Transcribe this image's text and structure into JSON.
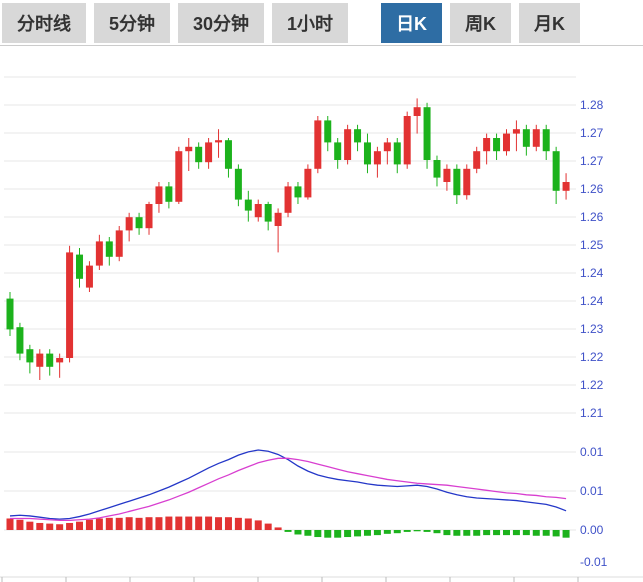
{
  "tabs": {
    "items": [
      {
        "label": "分时线",
        "active": false
      },
      {
        "label": "5分钟",
        "active": false
      },
      {
        "label": "30分钟",
        "active": false
      },
      {
        "label": "1小时",
        "active": false
      },
      {
        "label": "日K",
        "active": true
      },
      {
        "label": "周K",
        "active": false
      },
      {
        "label": "月K",
        "active": false
      }
    ],
    "active_bg": "#2e6da4",
    "inactive_bg": "#d8d8d8"
  },
  "chart_data": {
    "type": "candlestick",
    "title": "",
    "description": "Daily candlestick price chart with MACD indicator pane below; red = up, green = down (Chinese convention)",
    "ohlc_format": "[open, high, low, close]",
    "price_axis_labels": [
      "1.28",
      "1.27",
      "1.27",
      "1.26",
      "1.26",
      "1.25",
      "1.24",
      "1.24",
      "1.23",
      "1.22",
      "1.22",
      "1.21"
    ],
    "macd_axis_labels": [
      "0.01",
      "0.01",
      "0.00",
      "-0.01"
    ],
    "price_axis_range": [
      1.21,
      1.28
    ],
    "macd_axis_range": [
      -0.005,
      0.0125
    ],
    "grid": true,
    "legend": "none",
    "candles": [
      [
        1.236,
        1.2375,
        1.2275,
        1.229
      ],
      [
        1.2295,
        1.2305,
        1.222,
        1.2235
      ],
      [
        1.2245,
        1.2255,
        1.219,
        1.2215
      ],
      [
        1.2205,
        1.2245,
        1.2175,
        1.2235
      ],
      [
        1.2235,
        1.2245,
        1.2185,
        1.2205
      ],
      [
        1.2215,
        1.2235,
        1.218,
        1.2225
      ],
      [
        1.2225,
        1.248,
        1.2215,
        1.2465
      ],
      [
        1.246,
        1.2475,
        1.2385,
        1.2405
      ],
      [
        1.2385,
        1.2445,
        1.2375,
        1.2435
      ],
      [
        1.2435,
        1.2505,
        1.2425,
        1.249
      ],
      [
        1.249,
        1.25,
        1.2435,
        1.2455
      ],
      [
        1.2455,
        1.2525,
        1.2445,
        1.2515
      ],
      [
        1.2515,
        1.2555,
        1.249,
        1.2545
      ],
      [
        1.2545,
        1.2555,
        1.2505,
        1.252
      ],
      [
        1.252,
        1.258,
        1.2505,
        1.2575
      ],
      [
        1.2575,
        1.2625,
        1.2555,
        1.2615
      ],
      [
        1.2615,
        1.2625,
        1.2565,
        1.258
      ],
      [
        1.258,
        1.2705,
        1.2575,
        1.2695
      ],
      [
        1.2695,
        1.2725,
        1.265,
        1.2705
      ],
      [
        1.2705,
        1.2715,
        1.2655,
        1.267
      ],
      [
        1.267,
        1.2725,
        1.2655,
        1.2715
      ],
      [
        1.2715,
        1.2745,
        1.268,
        1.272
      ],
      [
        1.272,
        1.2725,
        1.2635,
        1.2655
      ],
      [
        1.2655,
        1.2665,
        1.257,
        1.2585
      ],
      [
        1.2585,
        1.2605,
        1.2535,
        1.256
      ],
      [
        1.2545,
        1.2585,
        1.2535,
        1.2575
      ],
      [
        1.2575,
        1.258,
        1.2515,
        1.2535
      ],
      [
        1.2525,
        1.2565,
        1.2465,
        1.2555
      ],
      [
        1.2555,
        1.2625,
        1.2545,
        1.2615
      ],
      [
        1.2615,
        1.2625,
        1.2575,
        1.259
      ],
      [
        1.259,
        1.2665,
        1.2585,
        1.2655
      ],
      [
        1.2655,
        1.2775,
        1.2645,
        1.2765
      ],
      [
        1.2765,
        1.2775,
        1.2695,
        1.2715
      ],
      [
        1.2715,
        1.2725,
        1.2655,
        1.2675
      ],
      [
        1.2675,
        1.2755,
        1.2665,
        1.2745
      ],
      [
        1.2745,
        1.2755,
        1.2695,
        1.2715
      ],
      [
        1.2715,
        1.2735,
        1.2645,
        1.2665
      ],
      [
        1.2665,
        1.2705,
        1.2635,
        1.2695
      ],
      [
        1.2695,
        1.2725,
        1.2665,
        1.2715
      ],
      [
        1.2715,
        1.2725,
        1.2645,
        1.2665
      ],
      [
        1.2665,
        1.2785,
        1.2655,
        1.2775
      ],
      [
        1.2775,
        1.2815,
        1.2735,
        1.2795
      ],
      [
        1.2795,
        1.2805,
        1.2655,
        1.2675
      ],
      [
        1.2675,
        1.2685,
        1.2615,
        1.2635
      ],
      [
        1.2625,
        1.2665,
        1.2605,
        1.2655
      ],
      [
        1.2655,
        1.2665,
        1.2575,
        1.2595
      ],
      [
        1.2595,
        1.2665,
        1.2585,
        1.2655
      ],
      [
        1.2655,
        1.2705,
        1.2645,
        1.2695
      ],
      [
        1.2695,
        1.2735,
        1.2665,
        1.2725
      ],
      [
        1.2725,
        1.2735,
        1.2675,
        1.2695
      ],
      [
        1.2695,
        1.2745,
        1.2685,
        1.2735
      ],
      [
        1.2735,
        1.2765,
        1.2695,
        1.2745
      ],
      [
        1.2745,
        1.2755,
        1.2685,
        1.2705
      ],
      [
        1.2705,
        1.2755,
        1.2695,
        1.2745
      ],
      [
        1.2745,
        1.2755,
        1.2675,
        1.2695
      ],
      [
        1.2695,
        1.2705,
        1.2575,
        1.2605
      ],
      [
        1.2605,
        1.2645,
        1.2585,
        1.2625
      ]
    ],
    "macd": {
      "dif": [
        0.0022,
        0.0023,
        0.0022,
        0.002,
        0.0018,
        0.0017,
        0.0018,
        0.0021,
        0.0025,
        0.003,
        0.0035,
        0.004,
        0.0045,
        0.005,
        0.0055,
        0.0061,
        0.0067,
        0.0074,
        0.0081,
        0.0089,
        0.0097,
        0.0104,
        0.011,
        0.0117,
        0.0122,
        0.0125,
        0.0123,
        0.0118,
        0.011,
        0.01,
        0.0092,
        0.0086,
        0.0082,
        0.0079,
        0.0077,
        0.0075,
        0.0072,
        0.007,
        0.0069,
        0.0068,
        0.0069,
        0.007,
        0.0068,
        0.0064,
        0.0059,
        0.0055,
        0.0052,
        0.005,
        0.0049,
        0.0048,
        0.0047,
        0.0046,
        0.0044,
        0.0042,
        0.004,
        0.0036,
        0.003
      ],
      "dea": [
        0.0018,
        0.0018,
        0.0018,
        0.0017,
        0.0016,
        0.0015,
        0.0015,
        0.0016,
        0.0017,
        0.0019,
        0.0022,
        0.0025,
        0.0029,
        0.0033,
        0.0037,
        0.0042,
        0.0047,
        0.0053,
        0.0059,
        0.0066,
        0.0073,
        0.008,
        0.0086,
        0.0093,
        0.0099,
        0.0105,
        0.0109,
        0.0112,
        0.0112,
        0.011,
        0.0107,
        0.0103,
        0.0099,
        0.0095,
        0.0091,
        0.0088,
        0.0085,
        0.0082,
        0.0079,
        0.0077,
        0.0075,
        0.0073,
        0.0072,
        0.0071,
        0.007,
        0.0068,
        0.0066,
        0.0064,
        0.0062,
        0.006,
        0.0058,
        0.0057,
        0.0055,
        0.0054,
        0.0052,
        0.0051,
        0.0049
      ],
      "hist": [
        0.0018,
        0.0016,
        0.0013,
        0.0011,
        0.001,
        0.0009,
        0.0011,
        0.0013,
        0.0016,
        0.0018,
        0.0019,
        0.0019,
        0.002,
        0.0019,
        0.002,
        0.002,
        0.0021,
        0.0021,
        0.0021,
        0.0021,
        0.0021,
        0.002,
        0.002,
        0.0019,
        0.0018,
        0.0015,
        0.001,
        0.0004,
        -0.0003,
        -0.0007,
        -0.0009,
        -0.0011,
        -0.0012,
        -0.0012,
        -0.0011,
        -0.001,
        -0.0009,
        -0.0008,
        -0.0006,
        -0.0005,
        -0.0003,
        -0.0002,
        -0.0003,
        -0.0005,
        -0.0008,
        -0.0009,
        -0.0009,
        -0.0009,
        -0.0008,
        -0.0008,
        -0.0008,
        -0.0008,
        -0.0008,
        -0.0009,
        -0.0009,
        -0.001,
        -0.0012
      ]
    },
    "colors": {
      "up": "#e23232",
      "down": "#1cb21c",
      "dif": "#2437c8",
      "dea": "#d83fd0",
      "axis_text": "#3f51c8",
      "grid": "#e7e7e7",
      "axis_line": "#dddddd",
      "tick": "#bbbbbb"
    }
  }
}
